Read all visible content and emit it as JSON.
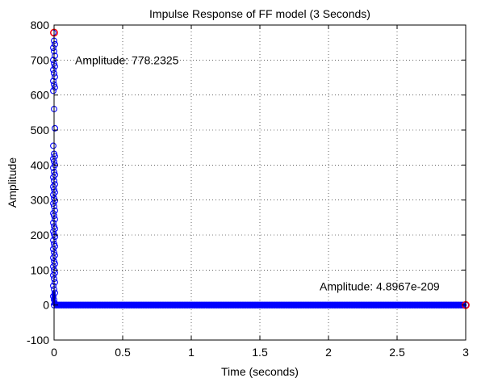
{
  "chart_data": {
    "type": "scatter",
    "title": "Impulse Response of FF model (3 Seconds)",
    "xlabel": "Time (seconds)",
    "ylabel": "Amplitude",
    "xlim": [
      0,
      3
    ],
    "ylim": [
      -100,
      800
    ],
    "xticks": [
      "0",
      "0.5",
      "1",
      "1.5",
      "2",
      "2.5",
      "3"
    ],
    "yticks": [
      "-100",
      "0",
      "100",
      "200",
      "300",
      "400",
      "500",
      "600",
      "700",
      "800"
    ],
    "grid": true,
    "series": [
      {
        "marker": "circle",
        "color": "#0000ff",
        "samples_near_zero": {
          "x": 0,
          "values": [
            778,
            755,
            745,
            735,
            725,
            712,
            700,
            690,
            682,
            672,
            662,
            652,
            640,
            630,
            622,
            612,
            560,
            505,
            455,
            432,
            425,
            418,
            410,
            400,
            392,
            380,
            372,
            365,
            355,
            345,
            338,
            330,
            322,
            315,
            305,
            298,
            290,
            282,
            270,
            262,
            255,
            245,
            235,
            225,
            218,
            210,
            202,
            195,
            185,
            175,
            168,
            160,
            150,
            142,
            135,
            125,
            118,
            110,
            100,
            92,
            85,
            75,
            65,
            55,
            45,
            35,
            25,
            15,
            5
          ]
        },
        "tail": {
          "x_start": 0,
          "x_end": 3,
          "y": 0
        }
      }
    ],
    "highlighted_points": [
      {
        "x": 0,
        "y": 778.2325,
        "label": "Amplitude: 778.2325",
        "marker_color": "#ff0000"
      },
      {
        "x": 3,
        "y": 4.8967e-209,
        "label": "Amplitude: 4.8967e-209",
        "marker_color": "#ff0000"
      }
    ]
  }
}
